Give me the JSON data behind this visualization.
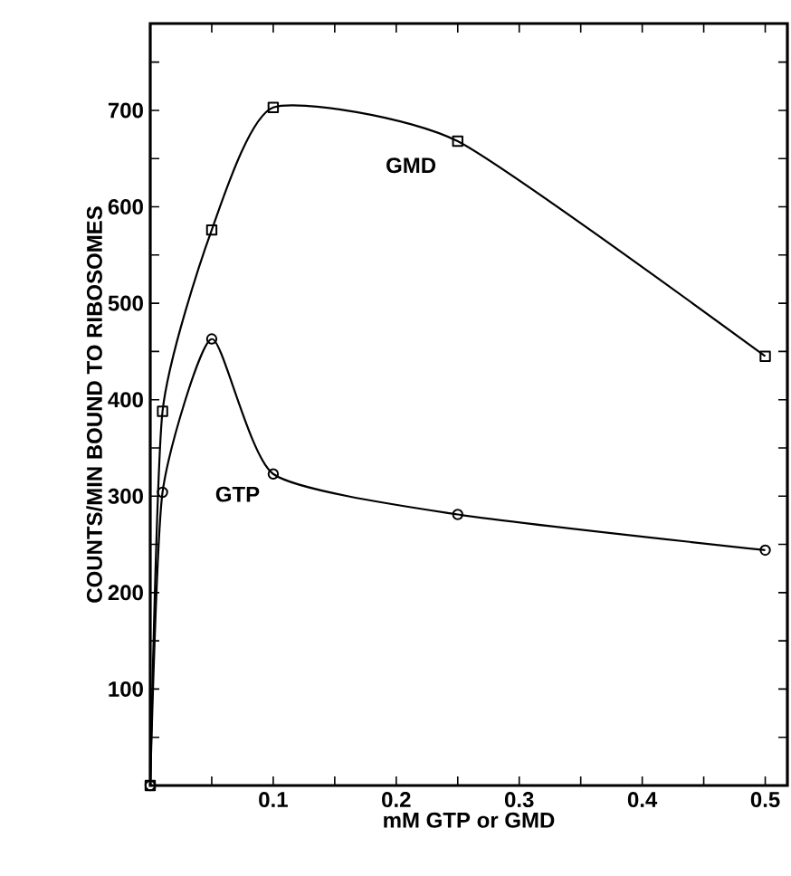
{
  "chart_data": {
    "type": "line",
    "xlabel": "mM GTP or GMD",
    "ylabel": "COUNTS/MIN BOUND TO RIBOSOMES",
    "xlim": [
      0,
      0.518
    ],
    "ylim": [
      0,
      790
    ],
    "xticks": [
      {
        "value": 0.05,
        "label": null
      },
      0.1,
      {
        "value": 0.15,
        "label": null
      },
      0.2,
      {
        "value": 0.25,
        "label": null
      },
      0.3,
      {
        "value": 0.35,
        "label": null
      },
      0.4,
      {
        "value": 0.45,
        "label": null
      },
      0.5
    ],
    "yticks": [
      {
        "value": 50,
        "label": null
      },
      100,
      {
        "value": 150,
        "label": null
      },
      200,
      {
        "value": 250,
        "label": null
      },
      300,
      {
        "value": 350,
        "label": null
      },
      400,
      {
        "value": 450,
        "label": null
      },
      500,
      {
        "value": 550,
        "label": null
      },
      600,
      {
        "value": 650,
        "label": null
      },
      700,
      {
        "value": 750,
        "label": null
      }
    ],
    "x": [
      0,
      0.01,
      0.05,
      0.1,
      0.25,
      0.5
    ],
    "series": [
      {
        "color": "#000000",
        "marker": "square",
        "values": [
          0,
          388,
          576,
          703,
          668,
          445
        ]
      },
      {
        "color": "#000000",
        "marker": "circle",
        "values": [
          0,
          304,
          463,
          323,
          281,
          244
        ]
      }
    ],
    "annotations": [
      {
        "text": "GMD",
        "x": 0.212,
        "y": 643
      },
      {
        "text": "GTP",
        "x": 0.071,
        "y": 302
      }
    ],
    "line_style": "solid"
  }
}
